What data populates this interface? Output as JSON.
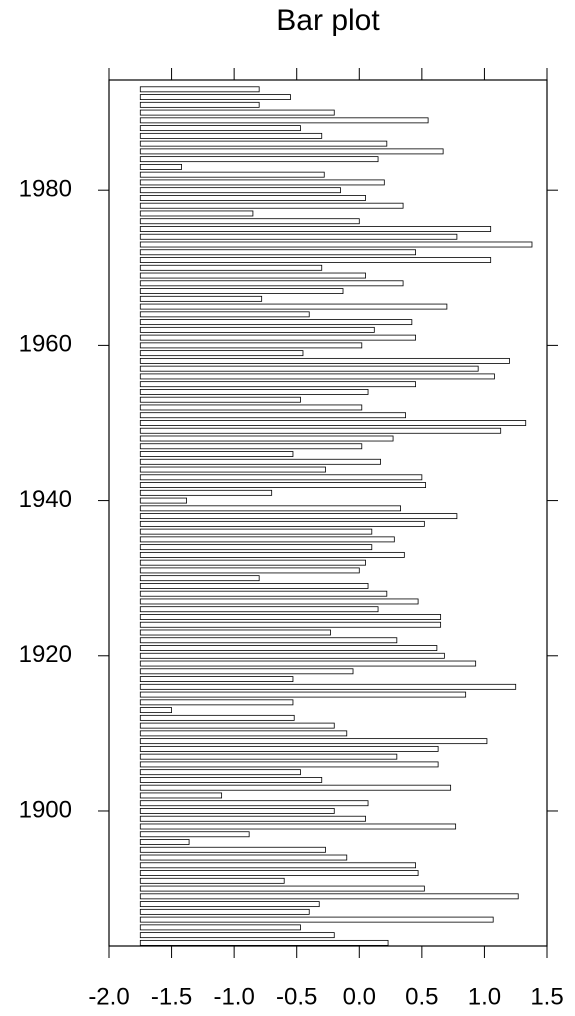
{
  "chart_data": {
    "type": "barh",
    "title": "Bar plot",
    "y": [
      1883,
      1884,
      1885,
      1886,
      1887,
      1888,
      1889,
      1890,
      1891,
      1892,
      1893,
      1894,
      1895,
      1896,
      1897,
      1898,
      1899,
      1900,
      1901,
      1902,
      1903,
      1904,
      1905,
      1906,
      1907,
      1908,
      1909,
      1910,
      1911,
      1912,
      1913,
      1914,
      1915,
      1916,
      1917,
      1918,
      1919,
      1920,
      1921,
      1922,
      1923,
      1924,
      1925,
      1926,
      1927,
      1928,
      1929,
      1930,
      1931,
      1932,
      1933,
      1934,
      1935,
      1936,
      1937,
      1938,
      1939,
      1940,
      1941,
      1942,
      1943,
      1944,
      1945,
      1946,
      1947,
      1948,
      1949,
      1950,
      1951,
      1952,
      1953,
      1954,
      1955,
      1956,
      1957,
      1958,
      1959,
      1960,
      1961,
      1962,
      1963,
      1964,
      1965,
      1966,
      1967,
      1968,
      1969,
      1970,
      1971,
      1972,
      1973,
      1974,
      1975,
      1976,
      1977,
      1978,
      1979,
      1980,
      1981,
      1982,
      1983,
      1984,
      1985,
      1986,
      1987,
      1988,
      1989,
      1990,
      1991,
      1992,
      1993
    ],
    "values": [
      0.23,
      -0.2,
      -0.47,
      1.07,
      -0.4,
      -0.32,
      1.27,
      0.52,
      -0.6,
      0.47,
      0.45,
      -0.1,
      -0.27,
      -1.36,
      -0.88,
      0.77,
      0.05,
      -0.2,
      0.07,
      -1.1,
      0.73,
      -0.3,
      -0.47,
      0.63,
      0.3,
      0.63,
      1.02,
      -0.1,
      -0.2,
      -0.52,
      -1.5,
      -0.53,
      0.85,
      1.25,
      -0.53,
      -0.05,
      0.93,
      0.68,
      0.62,
      0.3,
      -0.23,
      0.65,
      0.65,
      0.15,
      0.47,
      0.22,
      0.07,
      -0.8,
      0.0,
      0.05,
      0.36,
      0.1,
      0.28,
      0.1,
      0.52,
      0.78,
      0.33,
      -1.38,
      -0.7,
      0.53,
      0.5,
      -0.27,
      0.17,
      -0.53,
      0.02,
      0.27,
      1.13,
      1.33,
      0.37,
      0.02,
      -0.47,
      0.07,
      0.45,
      1.08,
      0.95,
      1.2,
      -0.45,
      0.02,
      0.45,
      0.12,
      0.42,
      -0.4,
      0.7,
      -0.78,
      -0.13,
      0.35,
      0.05,
      -0.3,
      1.05,
      0.45,
      1.38,
      0.78,
      1.05,
      0.0,
      -0.85,
      0.35,
      0.05,
      -0.15,
      0.2,
      -0.28,
      -1.42,
      0.15,
      0.67,
      0.22,
      -0.3,
      -0.47,
      0.55,
      -0.2,
      -0.8,
      -0.55,
      -0.8
    ],
    "bar_base": -1.75,
    "color": "#ffffff",
    "edge_color": "#000000",
    "xlim": [
      -2.0,
      1.5
    ],
    "xticks": [
      {
        "value": -2,
        "label": "-2.0"
      },
      {
        "value": -1.5,
        "label": "-1.5"
      },
      {
        "value": -1,
        "label": "-1.0"
      },
      {
        "value": -0.5,
        "label": "-0.5"
      },
      {
        "value": 0,
        "label": "0.0"
      },
      {
        "value": 0.5,
        "label": "0.5"
      },
      {
        "value": 1,
        "label": "1.0"
      },
      {
        "value": 1.5,
        "label": "1.5"
      }
    ],
    "ylim": [
      1882.6,
      1994.2
    ],
    "yticks": [
      1900,
      1920,
      1940,
      1960,
      1980
    ]
  }
}
